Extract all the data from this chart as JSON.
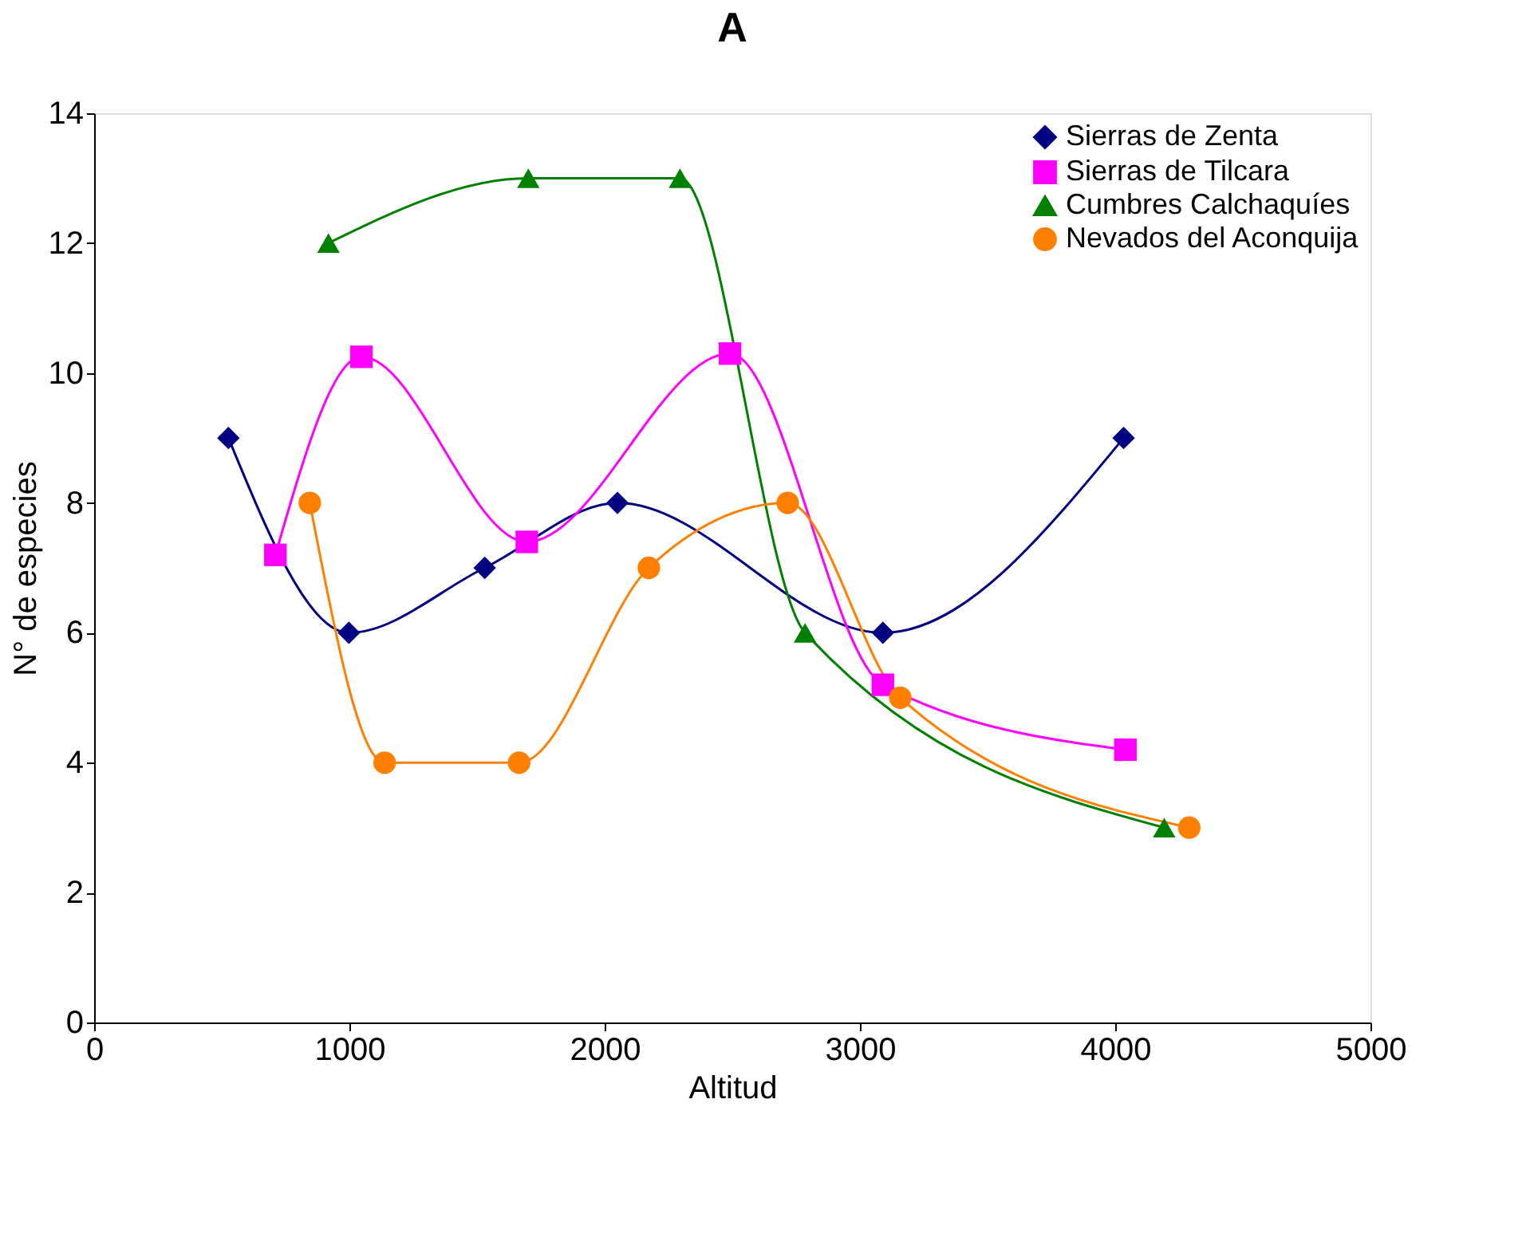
{
  "chart_data": {
    "type": "line",
    "title": "A",
    "xlabel": "Altitud",
    "ylabel": "N° de especies",
    "xlim": [
      0,
      5000
    ],
    "xticks": [
      0,
      1000,
      2000,
      3000,
      4000,
      5000
    ],
    "ylim": [
      0,
      14
    ],
    "yticks": [
      0,
      2,
      4,
      6,
      8,
      10,
      12,
      14
    ],
    "grid": false,
    "legend": "top right",
    "series": [
      {
        "name": "Sierras de Zenta",
        "color": "#000080",
        "marker": "diamond",
        "x": [
          526,
          998,
          1530,
          2050,
          3090,
          4033
        ],
        "values": [
          9,
          6,
          7,
          8,
          6,
          9
        ]
      },
      {
        "name": "Sierras de Tilcara",
        "color": "#ff00ff",
        "marker": "square",
        "x": [
          710,
          1047,
          1695,
          2491,
          3090,
          4040
        ],
        "values": [
          7.2,
          10.25,
          7.4,
          10.3,
          5.2,
          4.2
        ]
      },
      {
        "name": "Cumbres Calchaquíes",
        "color": "#008000",
        "marker": "triangle",
        "x": [
          918,
          1701,
          2295,
          2785,
          4192
        ],
        "values": [
          12,
          13,
          13,
          6,
          3
        ]
      },
      {
        "name": "Nevados del Aconquija",
        "color": "#ff8000",
        "marker": "circle",
        "x": [
          845,
          1138,
          1665,
          2173,
          2717,
          3158,
          4290
        ],
        "values": [
          8,
          4,
          4,
          7,
          8,
          5,
          3
        ]
      }
    ]
  }
}
